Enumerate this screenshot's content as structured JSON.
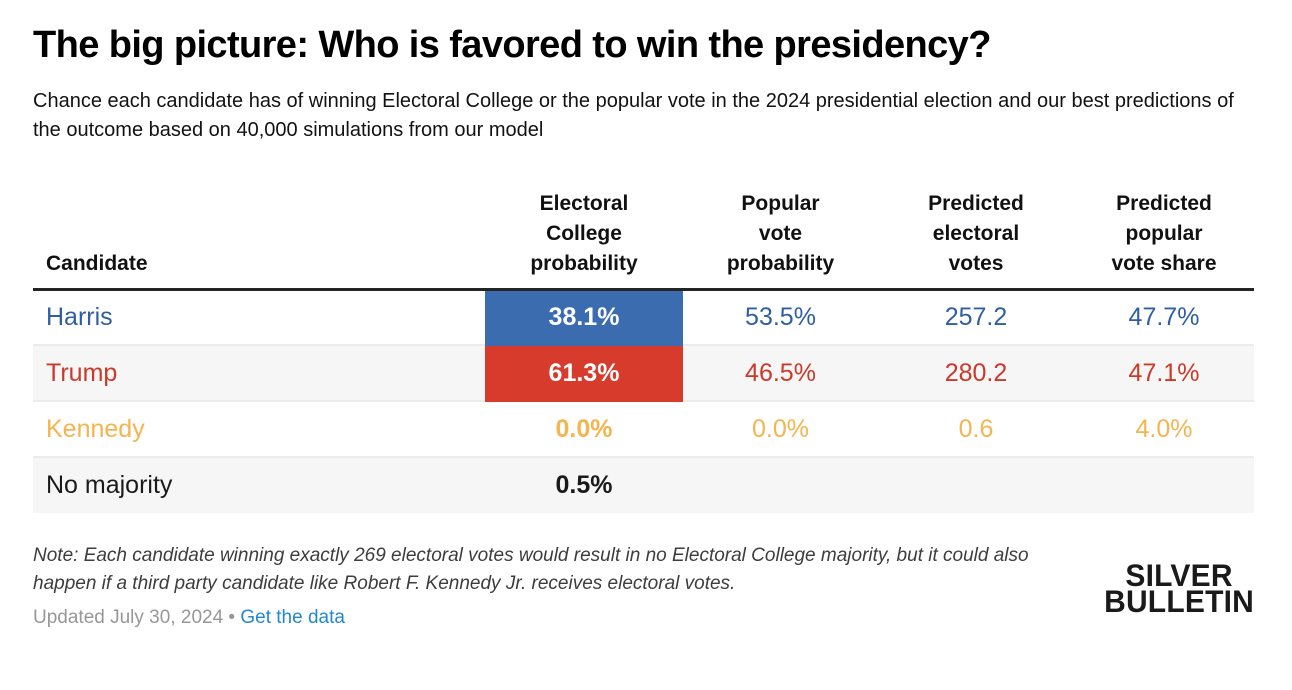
{
  "page": {
    "title": "The big picture: Who is favored to win the presidency?",
    "subtitle": "Chance each candidate has of winning Electoral College or the popular vote in the 2024 presidential election and our best predictions of the outcome based on 40,000 simulations from our model"
  },
  "table": {
    "headers": {
      "candidate": "Candidate",
      "ec": "Electoral\nCollege\nprobability",
      "pv": "Popular\nvote\nprobability",
      "pev": "Predicted\nelectoral\nvotes",
      "ppvs": "Predicted\npopular\nvote share"
    },
    "rows": [
      {
        "candidate": "Harris",
        "ec": "38.1%",
        "pv": "53.5%",
        "pev": "257.2",
        "ppvs": "47.7%",
        "color": "#2F5FA2",
        "ec_cell_bg": "#3B6CB0",
        "ec_cell_text": "#FFFFFF"
      },
      {
        "candidate": "Trump",
        "ec": "61.3%",
        "pv": "46.5%",
        "pev": "280.2",
        "ppvs": "47.1%",
        "color": "#CC392A",
        "ec_cell_bg": "#D63B2B",
        "ec_cell_text": "#FFFFFF"
      },
      {
        "candidate": "Kennedy",
        "ec": "0.0%",
        "pv": "0.0%",
        "pev": "0.6",
        "ppvs": "4.0%",
        "color": "#F5B44F"
      },
      {
        "candidate": "No majority",
        "ec": "0.5%",
        "pv": "",
        "pev": "",
        "ppvs": "",
        "color": "#1A1A1A"
      }
    ]
  },
  "footer": {
    "note": "Note: Each candidate winning exactly 269 electoral votes would result in no Electoral College majority, but it could also happen if a third party candidate like Robert F. Kennedy Jr. receives electoral votes.",
    "updated": "Updated July 30, 2024",
    "dot": "•",
    "link_label": "Get the data",
    "link_color": "#2388CC"
  },
  "logo": {
    "line1": "SILVER",
    "line2": "BULLETIN"
  },
  "colors": {
    "harris_blue_text": "#2F5FA2",
    "harris_blue_cell": "#3B6CB0",
    "trump_red_text": "#CC392A",
    "trump_red_cell": "#D63B2B",
    "kennedy_gold": "#F5B44F",
    "link_blue": "#2388CC",
    "row_stripe": "#F6F6F6",
    "header_rule": "#242424"
  },
  "chart_data": {
    "type": "table",
    "title": "The big picture: Who is favored to win the presidency?",
    "subtitle": "Chance each candidate has of winning Electoral College or the popular vote in the 2024 presidential election and our best predictions of the outcome based on 40,000 simulations from our model",
    "columns": [
      "Candidate",
      "Electoral College probability",
      "Popular vote probability",
      "Predicted electoral votes",
      "Predicted popular vote share"
    ],
    "rows": [
      [
        "Harris",
        "38.1%",
        "53.5%",
        "257.2",
        "47.7%"
      ],
      [
        "Trump",
        "61.3%",
        "46.5%",
        "280.2",
        "47.1%"
      ],
      [
        "Kennedy",
        "0.0%",
        "0.0%",
        "0.6",
        "4.0%"
      ],
      [
        "No majority",
        "0.5%",
        "",
        "",
        ""
      ]
    ],
    "highlighted_cells": [
      {
        "row": "Harris",
        "column": "Electoral College probability",
        "background": "#3B6CB0"
      },
      {
        "row": "Trump",
        "column": "Electoral College probability",
        "background": "#D63B2B"
      }
    ],
    "note": "Note: Each candidate winning exactly 269 electoral votes would result in no Electoral College majority, but it could also happen if a third party candidate like Robert F. Kennedy Jr. receives electoral votes.",
    "updated": "Updated July 30, 2024",
    "source_logo": "SILVER BULLETIN"
  }
}
